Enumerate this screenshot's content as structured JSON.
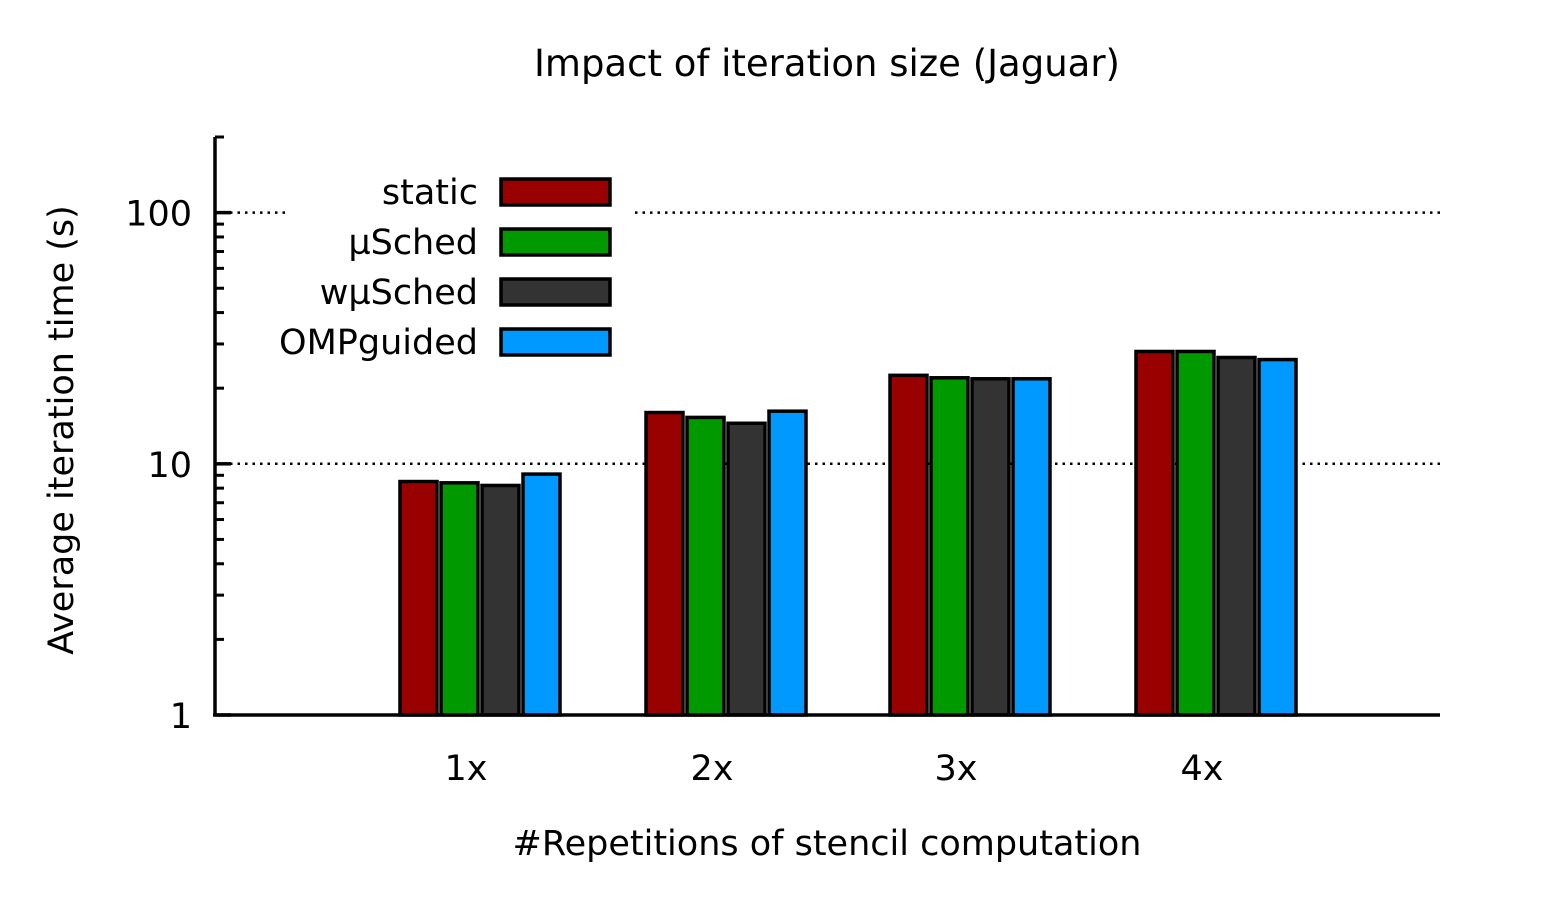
{
  "chart_data": {
    "type": "bar",
    "title": "Impact of iteration size (Jaguar)",
    "xlabel": "#Repetitions of stencil computation",
    "ylabel": "Average iteration time (s)",
    "yscale": "log",
    "ylim": [
      1,
      200
    ],
    "yticks": [
      {
        "value": 1,
        "label": "1"
      },
      {
        "value": 10,
        "label": "10"
      },
      {
        "value": 100,
        "label": "100"
      }
    ],
    "gridlines": [
      10,
      100
    ],
    "grid": "horizontal dotted at major ticks",
    "legend_position": "top-left",
    "categories": [
      "1x",
      "2x",
      "3x",
      "4x"
    ],
    "series": [
      {
        "name": "static",
        "color": "#990000",
        "values": [
          8.5,
          16.0,
          22.5,
          28.0
        ]
      },
      {
        "name": "µSched",
        "color": "#009900",
        "values": [
          8.4,
          15.3,
          22.0,
          28.0
        ]
      },
      {
        "name": "wµSched",
        "color": "#333333",
        "values": [
          8.2,
          14.5,
          21.8,
          26.5
        ]
      },
      {
        "name": "OMPguided",
        "color": "#0099ff",
        "values": [
          9.1,
          16.2,
          21.8,
          26.0
        ]
      }
    ]
  }
}
